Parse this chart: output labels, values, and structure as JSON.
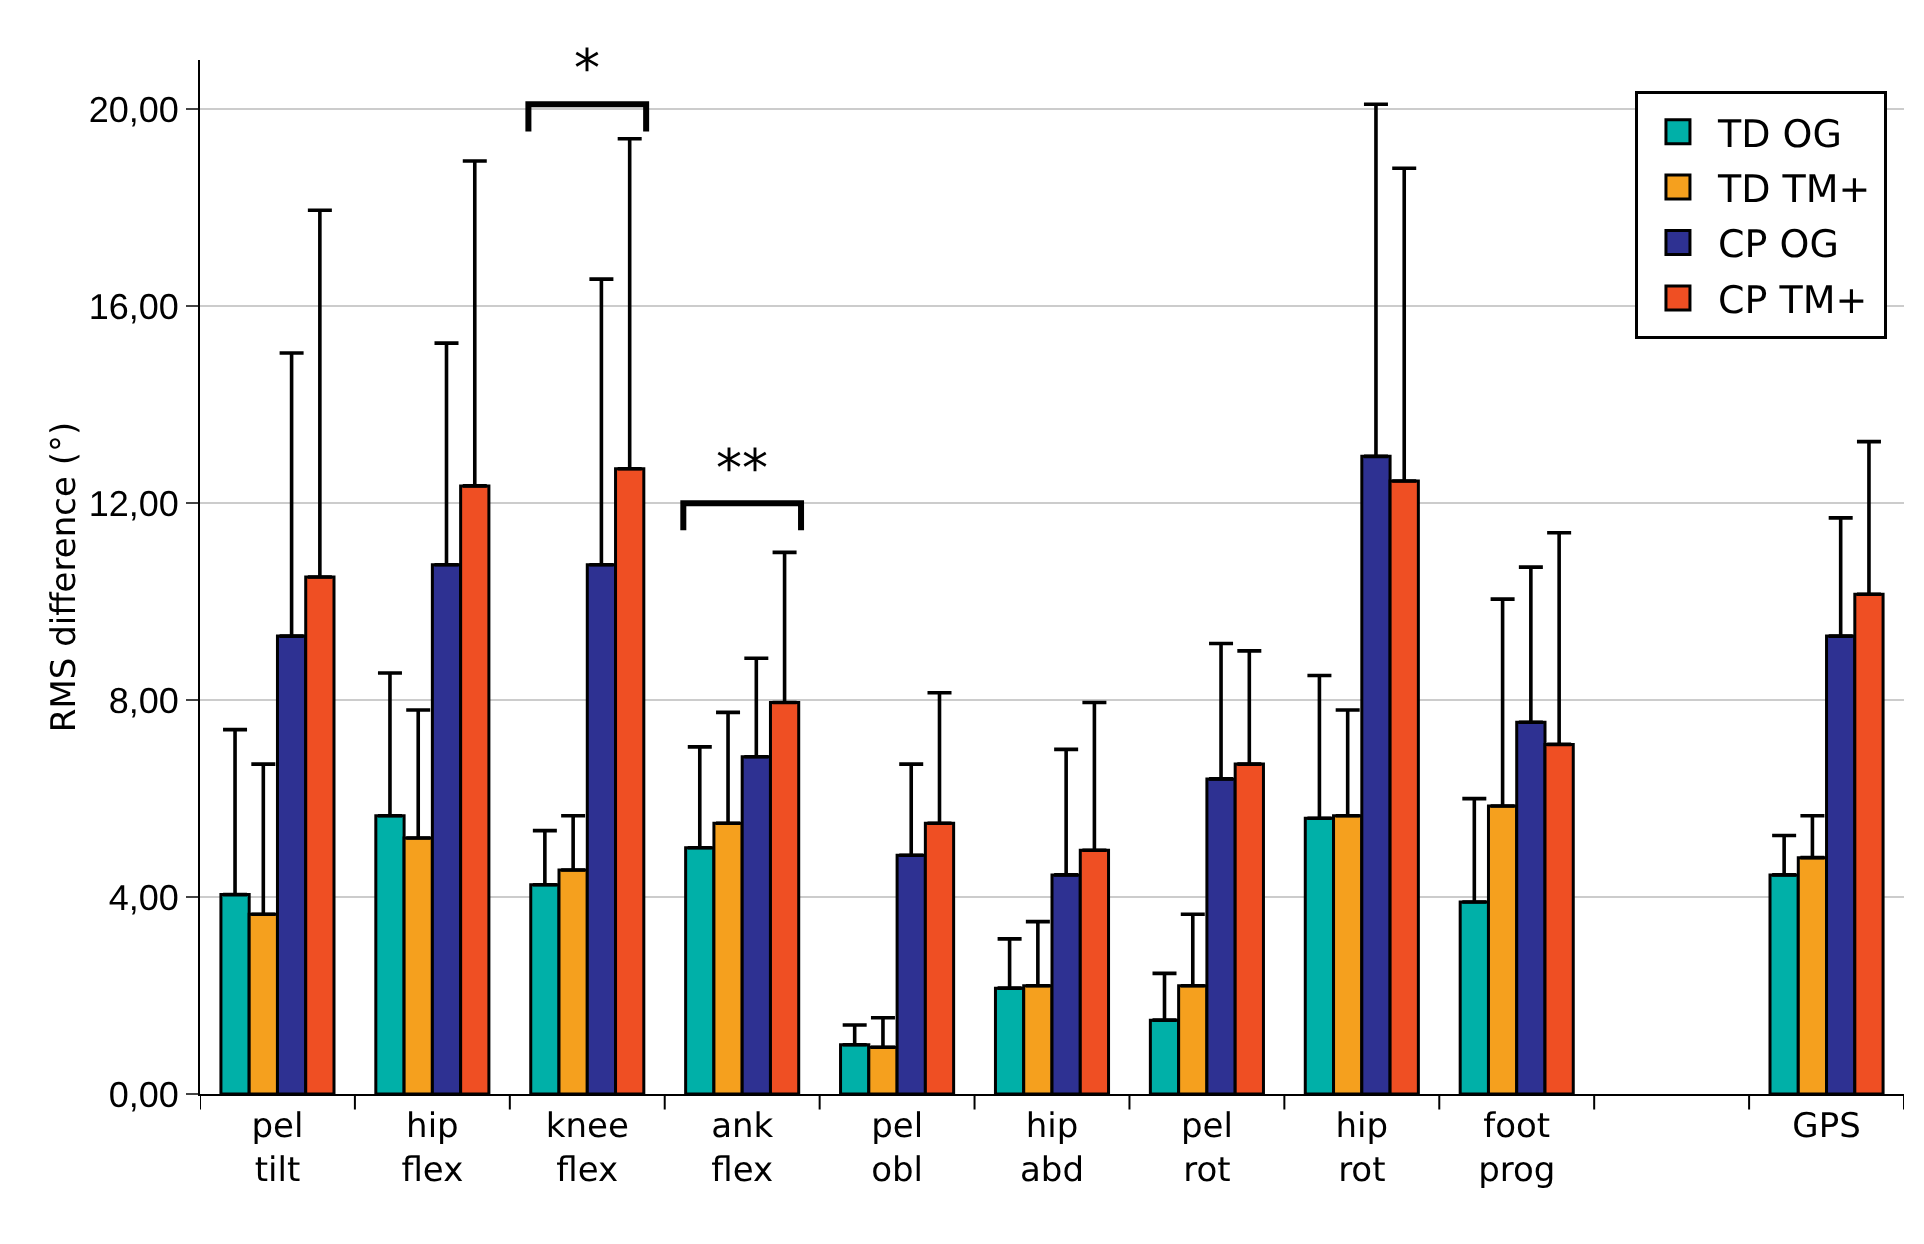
{
  "chart_data": {
    "type": "bar",
    "ylabel": "RMS difference (°)",
    "categories": [
      "pel tilt",
      "hip flex",
      "knee flex",
      "ank flex",
      "pel obl",
      "hip abd",
      "pel rot",
      "hip rot",
      "foot prog",
      null,
      "GPS"
    ],
    "series": [
      {
        "name": "TD OG",
        "color": "#00b0a8",
        "values": [
          4.05,
          5.65,
          4.25,
          5.0,
          1.0,
          2.15,
          1.5,
          5.6,
          3.9,
          null,
          4.45
        ],
        "errors": [
          [
            4.05,
            7.4
          ],
          [
            5.65,
            8.55
          ],
          [
            4.25,
            5.35
          ],
          [
            5.0,
            7.05
          ],
          [
            1.0,
            1.4
          ],
          [
            2.15,
            3.15
          ],
          [
            1.5,
            2.45
          ],
          [
            5.6,
            8.5
          ],
          [
            3.9,
            6.0
          ],
          null,
          [
            4.45,
            5.25
          ]
        ]
      },
      {
        "name": "TD TM+",
        "color": "#f5a01e",
        "values": [
          3.65,
          5.2,
          4.55,
          5.5,
          0.95,
          2.2,
          2.2,
          5.65,
          5.85,
          null,
          4.8
        ],
        "errors": [
          [
            3.65,
            6.7
          ],
          [
            5.2,
            7.8
          ],
          [
            4.55,
            5.65
          ],
          [
            5.5,
            7.75
          ],
          [
            0.95,
            1.55
          ],
          [
            2.2,
            3.5
          ],
          [
            2.2,
            3.65
          ],
          [
            5.65,
            7.8
          ],
          [
            5.85,
            10.05
          ],
          null,
          [
            4.8,
            5.65
          ]
        ]
      },
      {
        "name": "CP OG",
        "color": "#2e3192",
        "values": [
          9.3,
          10.75,
          10.75,
          6.85,
          4.85,
          4.45,
          6.4,
          12.95,
          7.55,
          null,
          9.3
        ],
        "errors": [
          [
            9.3,
            15.05
          ],
          [
            10.75,
            15.25
          ],
          [
            10.75,
            16.55
          ],
          [
            6.85,
            8.85
          ],
          [
            4.85,
            6.7
          ],
          [
            4.45,
            7.0
          ],
          [
            6.4,
            9.15
          ],
          [
            12.95,
            20.1
          ],
          [
            7.55,
            10.7
          ],
          null,
          [
            9.3,
            11.7
          ]
        ]
      },
      {
        "name": "CP TM+",
        "color": "#ef4f23",
        "values": [
          10.5,
          12.35,
          12.7,
          7.95,
          5.5,
          4.95,
          6.7,
          12.45,
          7.1,
          null,
          10.15
        ],
        "errors": [
          [
            10.5,
            17.95
          ],
          [
            12.35,
            18.95
          ],
          [
            12.7,
            19.4
          ],
          [
            7.95,
            11.0
          ],
          [
            5.5,
            8.15
          ],
          [
            4.95,
            7.95
          ],
          [
            6.7,
            9.0
          ],
          [
            12.45,
            18.8
          ],
          [
            7.1,
            11.4
          ],
          null,
          [
            10.15,
            13.25
          ]
        ]
      }
    ],
    "ylim": [
      0,
      21
    ],
    "yticks": [
      {
        "value": 0,
        "label": "0,00"
      },
      {
        "value": 4,
        "label": "4,00"
      },
      {
        "value": 8,
        "label": "8,00"
      },
      {
        "value": 12,
        "label": "12,00"
      },
      {
        "value": 16,
        "label": "16,00"
      },
      {
        "value": 20,
        "label": "20,00"
      }
    ],
    "grid": "y",
    "legend": "top right",
    "annotations": [
      "*",
      "**"
    ]
  }
}
